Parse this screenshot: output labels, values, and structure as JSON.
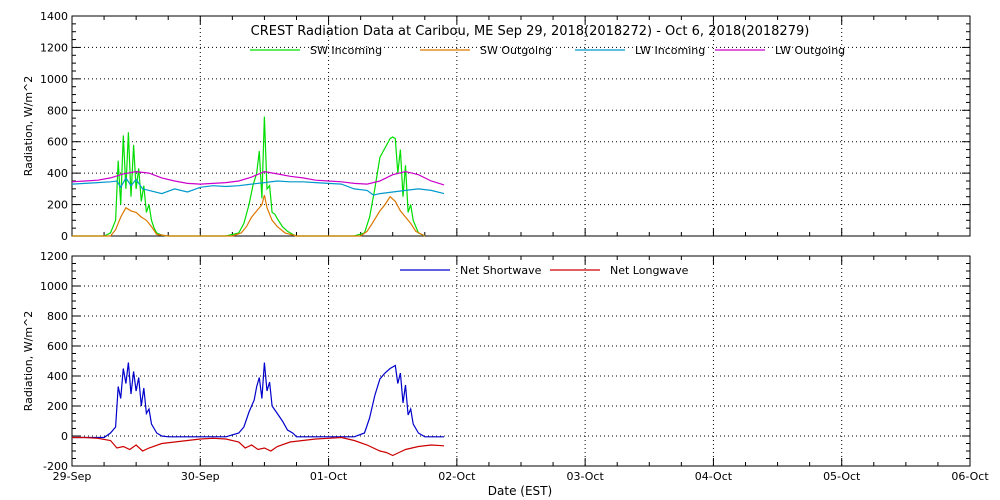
{
  "title": "CREST Radiation Data at Caribou, ME   Sep 29, 2018(2018272) - Oct  6, 2018(2018279)",
  "xlabel": "Date (EST)",
  "colors": {
    "sw_in": "#00dd00",
    "sw_out": "#dd7700",
    "lw_in": "#0099cc",
    "lw_out": "#cc00cc",
    "net_sw": "#0000cc",
    "net_lw": "#cc0000"
  },
  "chart_data": [
    {
      "type": "line",
      "ylabel": "Radiation, W/m^2",
      "ylim": [
        0,
        1400
      ],
      "yticks": [
        0,
        200,
        400,
        600,
        800,
        1000,
        1200,
        1400
      ],
      "xlim": [
        0,
        7
      ],
      "xticks": [
        "29-Sep",
        "30-Sep",
        "01-Oct",
        "02-Oct",
        "03-Oct",
        "04-Oct",
        "05-Oct",
        "06-Oct"
      ],
      "grid": true,
      "legend": "top-center",
      "series": [
        {
          "name": "SW Incoming",
          "color_key": "sw_in",
          "x": [
            0.0,
            0.25,
            0.3,
            0.34,
            0.36,
            0.38,
            0.4,
            0.42,
            0.44,
            0.46,
            0.48,
            0.5,
            0.52,
            0.54,
            0.56,
            0.58,
            0.6,
            0.62,
            0.64,
            0.66,
            0.7,
            0.75,
            1.2,
            1.3,
            1.34,
            1.38,
            1.41,
            1.44,
            1.46,
            1.48,
            1.5,
            1.52,
            1.54,
            1.56,
            1.58,
            1.6,
            1.64,
            1.68,
            1.72,
            1.75,
            2.2,
            2.28,
            2.32,
            2.36,
            2.4,
            2.44,
            2.48,
            2.5,
            2.52,
            2.54,
            2.56,
            2.58,
            2.6,
            2.62,
            2.64,
            2.66,
            2.7,
            2.75
          ],
          "y": [
            0,
            0,
            20,
            100,
            480,
            200,
            640,
            300,
            660,
            250,
            580,
            300,
            430,
            220,
            320,
            150,
            200,
            100,
            50,
            20,
            5,
            0,
            0,
            20,
            80,
            200,
            320,
            400,
            540,
            240,
            760,
            300,
            320,
            150,
            140,
            110,
            60,
            30,
            10,
            0,
            0,
            20,
            120,
            300,
            500,
            560,
            620,
            630,
            620,
            400,
            550,
            250,
            450,
            150,
            200,
            100,
            20,
            0
          ]
        },
        {
          "name": "SW Outgoing",
          "color_key": "sw_out",
          "x": [
            0.0,
            0.3,
            0.34,
            0.38,
            0.42,
            0.46,
            0.5,
            0.54,
            0.58,
            0.62,
            0.66,
            0.75,
            1.25,
            1.32,
            1.36,
            1.4,
            1.44,
            1.48,
            1.5,
            1.52,
            1.56,
            1.6,
            1.66,
            1.75,
            2.25,
            2.3,
            2.34,
            2.4,
            2.44,
            2.48,
            2.52,
            2.56,
            2.6,
            2.64,
            2.68,
            2.75
          ],
          "y": [
            0,
            0,
            40,
            120,
            180,
            160,
            150,
            120,
            100,
            60,
            10,
            0,
            0,
            20,
            60,
            120,
            160,
            200,
            260,
            180,
            100,
            60,
            20,
            0,
            0,
            30,
            80,
            160,
            200,
            250,
            220,
            160,
            120,
            80,
            30,
            0
          ]
        },
        {
          "name": "LW Incoming",
          "color_key": "lw_in",
          "x": [
            0.0,
            0.1,
            0.2,
            0.3,
            0.35,
            0.38,
            0.42,
            0.46,
            0.5,
            0.55,
            0.6,
            0.7,
            0.8,
            0.9,
            1.0,
            1.1,
            1.2,
            1.3,
            1.4,
            1.5,
            1.6,
            1.7,
            1.8,
            1.9,
            2.0,
            2.1,
            2.2,
            2.3,
            2.35,
            2.4,
            2.5,
            2.6,
            2.7,
            2.8,
            2.9
          ],
          "y": [
            330,
            335,
            340,
            345,
            350,
            310,
            370,
            320,
            360,
            300,
            290,
            270,
            300,
            280,
            310,
            320,
            315,
            320,
            330,
            340,
            350,
            345,
            345,
            340,
            335,
            330,
            300,
            290,
            260,
            270,
            280,
            290,
            300,
            290,
            270
          ]
        },
        {
          "name": "LW Outgoing",
          "color_key": "lw_out",
          "x": [
            0.0,
            0.1,
            0.2,
            0.3,
            0.4,
            0.5,
            0.6,
            0.7,
            0.8,
            0.9,
            1.0,
            1.1,
            1.2,
            1.3,
            1.4,
            1.5,
            1.6,
            1.7,
            1.8,
            1.9,
            2.0,
            2.1,
            2.2,
            2.3,
            2.4,
            2.5,
            2.6,
            2.7,
            2.8,
            2.9
          ],
          "y": [
            345,
            350,
            355,
            370,
            395,
            410,
            400,
            370,
            350,
            335,
            330,
            335,
            340,
            350,
            375,
            410,
            395,
            380,
            370,
            355,
            350,
            345,
            335,
            330,
            350,
            390,
            410,
            390,
            350,
            325
          ]
        }
      ]
    },
    {
      "type": "line",
      "ylabel": "Radiation, W/m^2",
      "ylim": [
        -200,
        1200
      ],
      "yticks": [
        -200,
        0,
        200,
        400,
        600,
        800,
        1000,
        1200
      ],
      "xlim": [
        0,
        7
      ],
      "xticks": [
        "29-Sep",
        "30-Sep",
        "01-Oct",
        "02-Oct",
        "03-Oct",
        "04-Oct",
        "05-Oct",
        "06-Oct"
      ],
      "grid": true,
      "legend": "top-center",
      "series": [
        {
          "name": "Net Shortwave",
          "color_key": "net_sw",
          "x": [
            0.0,
            0.25,
            0.3,
            0.34,
            0.36,
            0.38,
            0.4,
            0.42,
            0.44,
            0.46,
            0.48,
            0.5,
            0.52,
            0.54,
            0.56,
            0.58,
            0.6,
            0.62,
            0.64,
            0.66,
            0.7,
            0.75,
            1.2,
            1.3,
            1.34,
            1.38,
            1.42,
            1.44,
            1.46,
            1.48,
            1.5,
            1.52,
            1.54,
            1.56,
            1.6,
            1.64,
            1.68,
            1.72,
            1.75,
            2.2,
            2.28,
            2.32,
            2.36,
            2.4,
            2.44,
            2.48,
            2.52,
            2.54,
            2.56,
            2.58,
            2.6,
            2.62,
            2.64,
            2.66,
            2.7,
            2.75,
            2.9
          ],
          "y": [
            -10,
            -10,
            20,
            60,
            330,
            250,
            450,
            350,
            490,
            280,
            430,
            300,
            390,
            200,
            320,
            150,
            180,
            80,
            50,
            20,
            0,
            -5,
            -5,
            20,
            60,
            160,
            240,
            330,
            390,
            250,
            490,
            300,
            360,
            200,
            150,
            100,
            40,
            20,
            -5,
            -5,
            20,
            120,
            270,
            380,
            420,
            450,
            470,
            350,
            420,
            220,
            340,
            140,
            180,
            80,
            20,
            -5,
            -5
          ]
        },
        {
          "name": "Net Longwave",
          "color_key": "net_lw",
          "x": [
            0.0,
            0.1,
            0.2,
            0.3,
            0.35,
            0.4,
            0.45,
            0.5,
            0.55,
            0.6,
            0.7,
            0.8,
            0.9,
            1.0,
            1.1,
            1.2,
            1.3,
            1.35,
            1.4,
            1.45,
            1.5,
            1.55,
            1.6,
            1.7,
            1.8,
            1.9,
            2.0,
            2.1,
            2.2,
            2.3,
            2.4,
            2.45,
            2.5,
            2.55,
            2.6,
            2.7,
            2.8,
            2.9
          ],
          "y": [
            -10,
            -10,
            -15,
            -30,
            -80,
            -70,
            -90,
            -60,
            -100,
            -80,
            -50,
            -40,
            -30,
            -20,
            -15,
            -20,
            -40,
            -80,
            -60,
            -90,
            -80,
            -100,
            -70,
            -40,
            -30,
            -20,
            -15,
            -10,
            -30,
            -60,
            -100,
            -110,
            -130,
            -110,
            -90,
            -70,
            -60,
            -65
          ]
        }
      ]
    }
  ]
}
